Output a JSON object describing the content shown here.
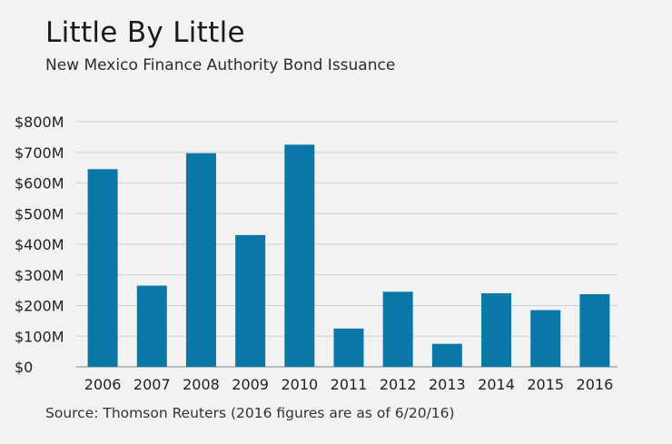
{
  "header": {
    "title": "Little By Little",
    "subtitle": "New Mexico Finance Authority Bond Issuance"
  },
  "footer": {
    "source": "Source: Thomson Reuters (2016 figures are as of 6/20/16)"
  },
  "colors": {
    "bar": "#0a78a6",
    "background": "#f2f2f2",
    "grid": "#cfcfcf"
  },
  "chart_data": {
    "type": "bar",
    "title": "Little By Little",
    "subtitle": "New Mexico Finance Authority Bond Issuance",
    "xlabel": "",
    "ylabel": "",
    "categories": [
      "2006",
      "2007",
      "2008",
      "2009",
      "2010",
      "2011",
      "2012",
      "2013",
      "2014",
      "2015",
      "2016"
    ],
    "values": [
      645,
      265,
      697,
      430,
      725,
      125,
      245,
      75,
      240,
      185,
      237
    ],
    "unit": "$M",
    "ylim": [
      0,
      800
    ],
    "yticks": [
      0,
      100,
      200,
      300,
      400,
      500,
      600,
      700,
      800
    ],
    "ytick_labels": [
      "$0",
      "$100M",
      "$200M",
      "$300M",
      "$400M",
      "$500M",
      "$600M",
      "$700M",
      "$800M"
    ],
    "grid": true,
    "legend": "none"
  }
}
